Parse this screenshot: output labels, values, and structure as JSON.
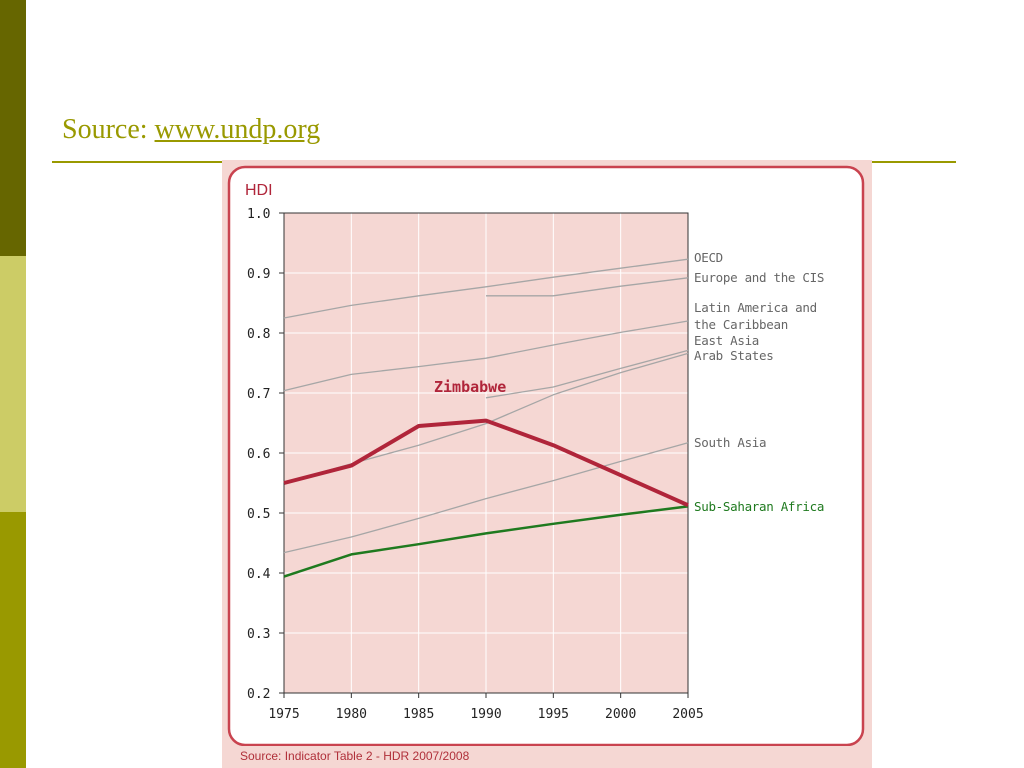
{
  "slide": {
    "source_label": "Source:",
    "source_link": "www.undp.org"
  },
  "chart_data": {
    "type": "line",
    "ylabel": "HDI",
    "xlabel": "",
    "x": [
      1975,
      1980,
      1985,
      1990,
      1995,
      2000,
      2005
    ],
    "xlim": [
      1975,
      2005
    ],
    "ylim": [
      0.2,
      1.0
    ],
    "yticks": [
      "0.2",
      "0.3",
      "0.4",
      "0.5",
      "0.6",
      "0.7",
      "0.8",
      "0.9",
      "1.0"
    ],
    "grid": true,
    "series": [
      {
        "name": "OECD",
        "color": "#a6a6a6",
        "values": [
          0.825,
          0.846,
          0.862,
          0.877,
          0.893,
          0.908,
          0.923
        ]
      },
      {
        "name": "Europe and the CIS",
        "color": "#a6a6a6",
        "values": [
          null,
          null,
          null,
          0.862,
          0.862,
          0.878,
          0.892
        ]
      },
      {
        "name": "Latin America and the Caribbean",
        "color": "#a6a6a6",
        "values": [
          0.704,
          0.731,
          0.744,
          0.758,
          0.78,
          0.801,
          0.82
        ]
      },
      {
        "name": "East Asia",
        "color": "#a6a6a6",
        "values": [
          null,
          null,
          null,
          0.692,
          0.71,
          0.741,
          0.771
        ]
      },
      {
        "name": "Arab States",
        "color": "#a6a6a6",
        "values": [
          0.55,
          0.582,
          0.613,
          0.649,
          0.697,
          0.734,
          0.766
        ]
      },
      {
        "name": "South Asia",
        "color": "#a6a6a6",
        "values": [
          0.434,
          0.46,
          0.491,
          0.524,
          0.554,
          0.586,
          0.617
        ]
      },
      {
        "name": "Sub-Saharan Africa",
        "color": "#1f7a1f",
        "values": [
          0.394,
          0.431,
          0.448,
          0.466,
          0.482,
          0.497,
          0.511
        ]
      },
      {
        "name": "Zimbabwe",
        "color": "#b0253a",
        "values": [
          0.55,
          0.579,
          0.645,
          0.654,
          0.613,
          0.563,
          0.513
        ]
      }
    ],
    "zimbabwe_label": "Zimbabwe",
    "right_labels": [
      "OECD",
      "Europe and the CIS",
      "Latin America and",
      "the Caribbean",
      "East Asia",
      "Arab States",
      "South Asia",
      "Sub-Saharan Africa"
    ],
    "footer_source": "Source: Indicator Table 2 - HDR 2007/2008"
  }
}
